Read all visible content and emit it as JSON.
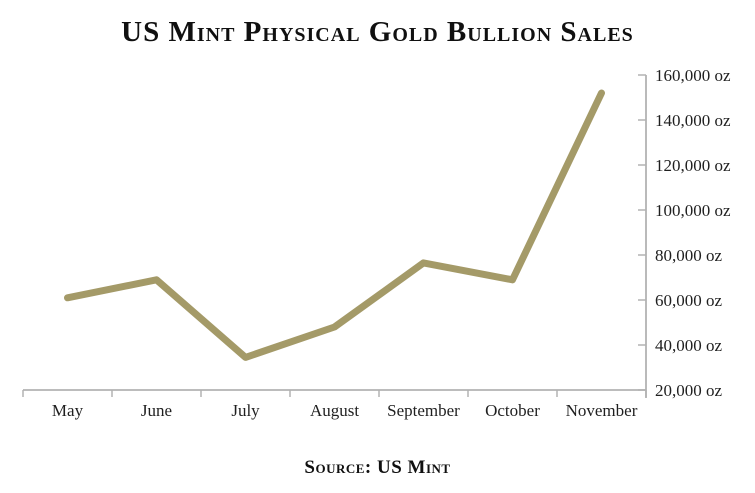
{
  "title": "US Mint Physical Gold Bullion Sales",
  "source": "Source: US Mint",
  "colors": {
    "line": "#a49a68",
    "axis": "#b2b2b2",
    "text": "#1f1f1f"
  },
  "chart_data": {
    "type": "line",
    "title": "US Mint Physical Gold Bullion Sales",
    "categories": [
      "May",
      "June",
      "July",
      "August",
      "September",
      "October",
      "November"
    ],
    "series": [
      {
        "name": "US Mint Physical Gold Bullion Sales",
        "values": [
          61000,
          69000,
          34500,
          48000,
          76500,
          69000,
          152000
        ]
      }
    ],
    "xlabel": "",
    "ylabel": "oz",
    "ylim": [
      20000,
      160000
    ],
    "y_tick_step": 20000,
    "y_tick_suffix": " oz",
    "y_axis_position": "right",
    "grid": false,
    "legend": false,
    "caption": "Source: US Mint"
  }
}
